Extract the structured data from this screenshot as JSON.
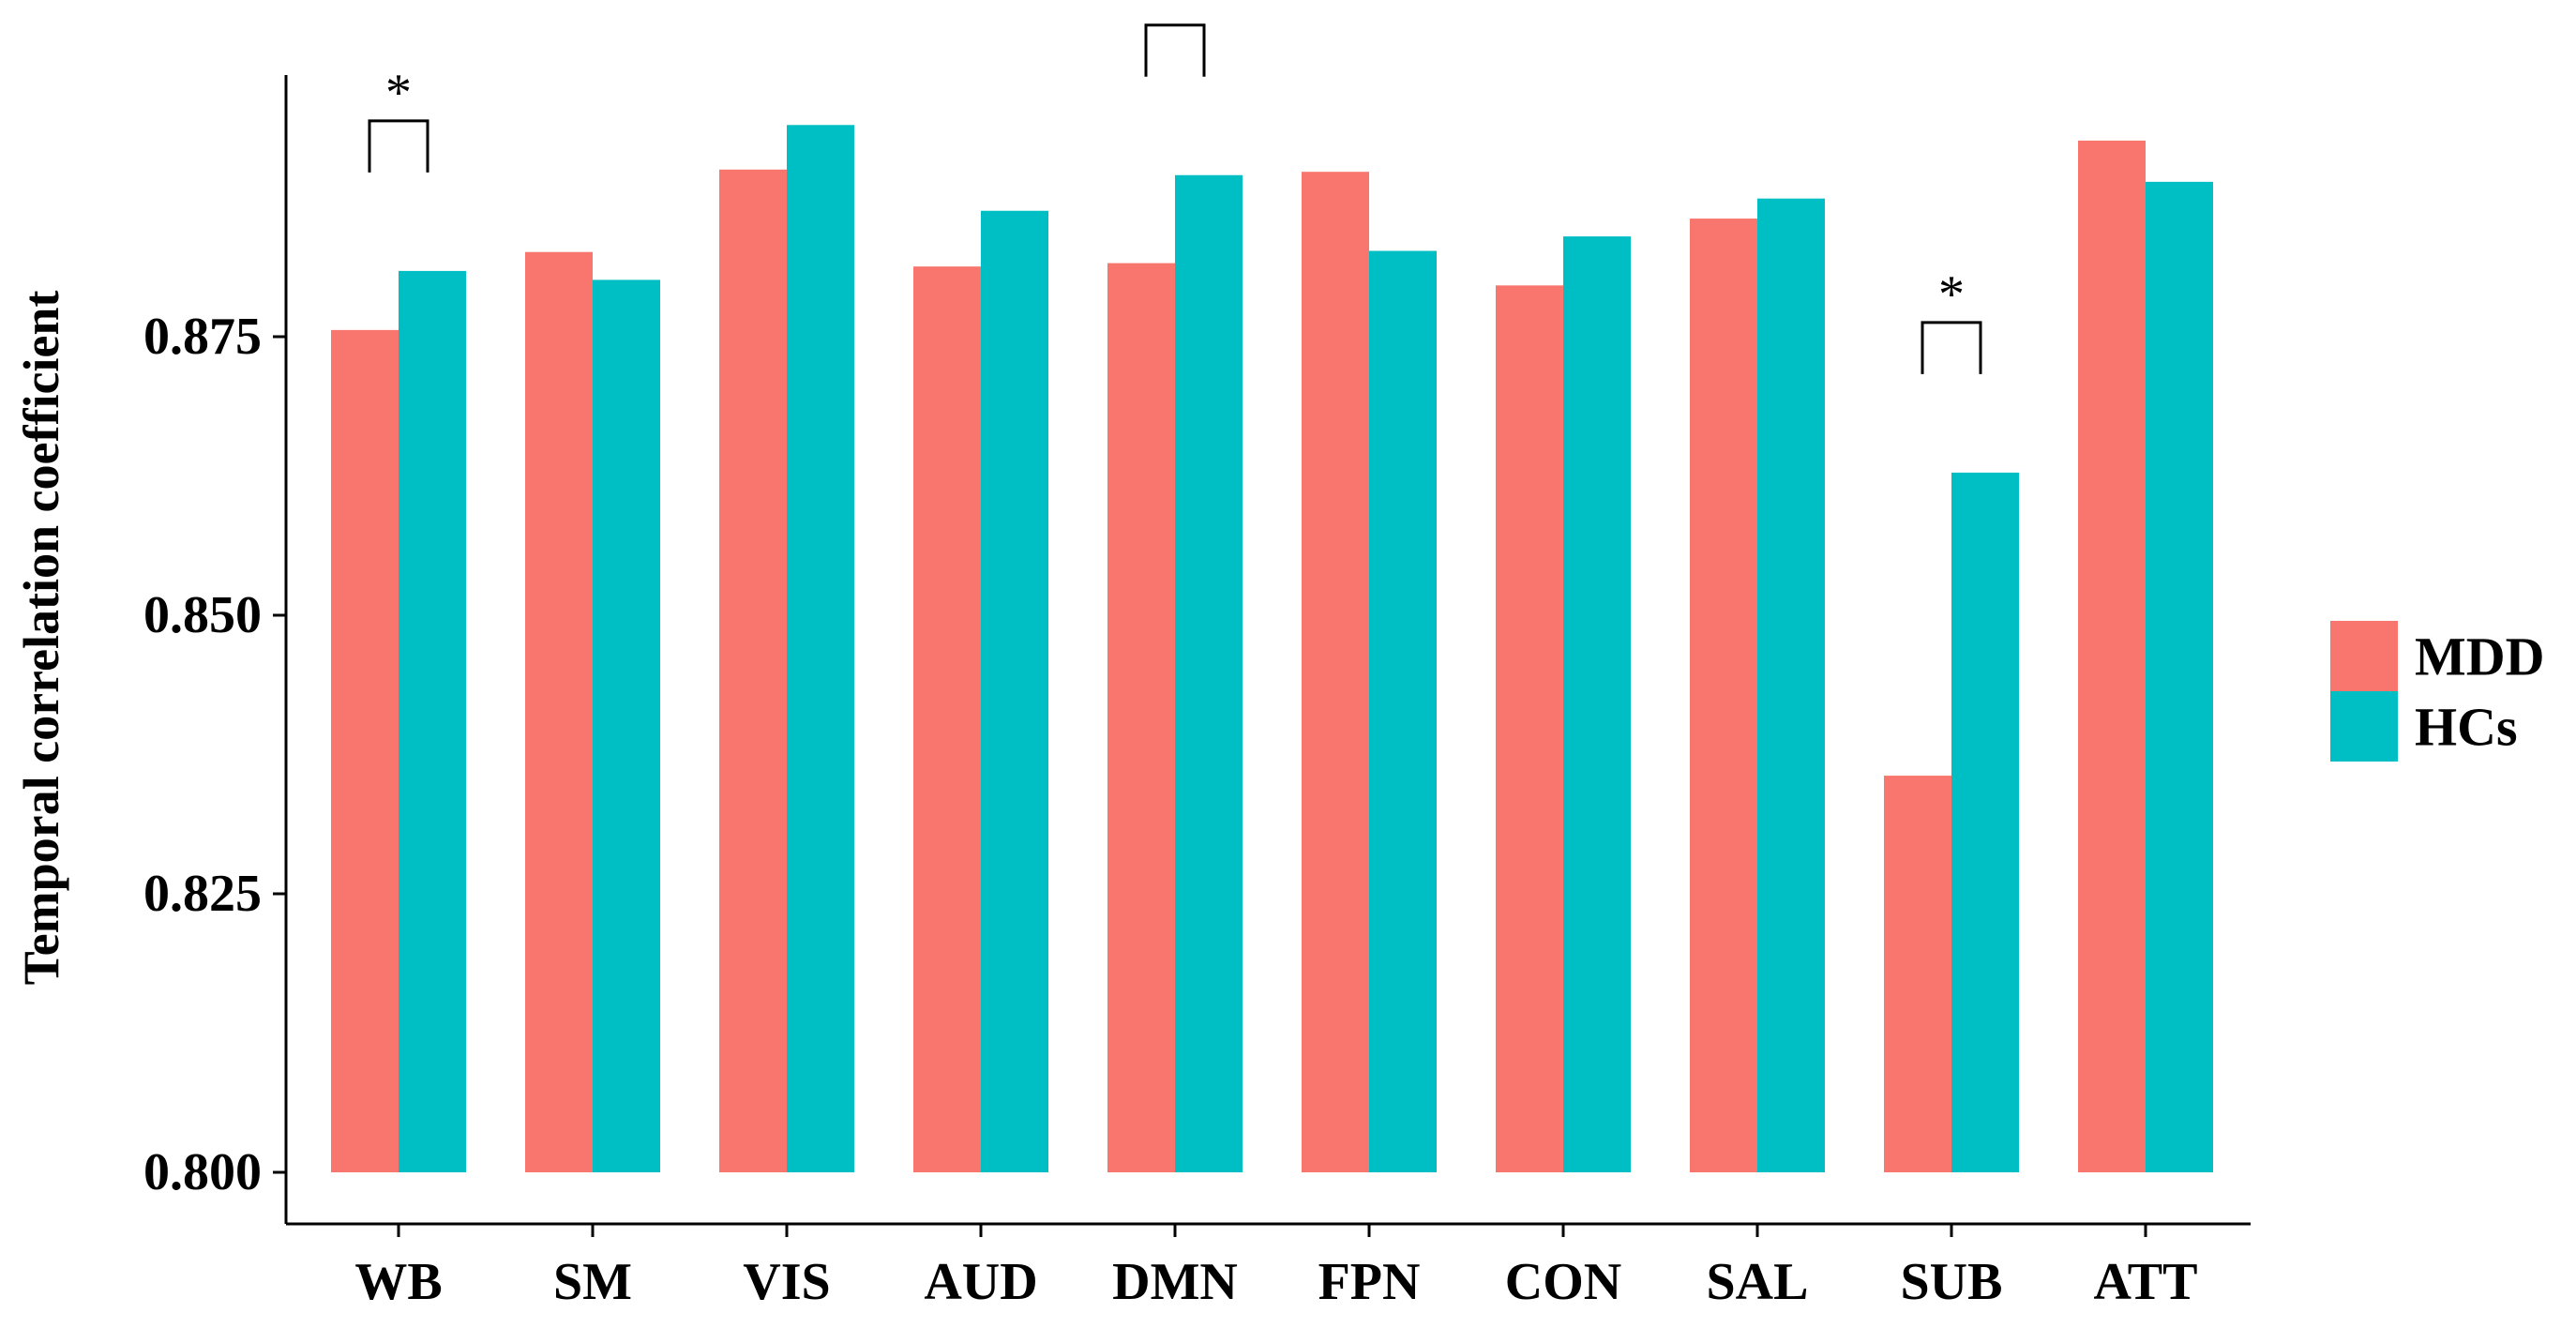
{
  "chart_data": {
    "type": "bar",
    "title": "",
    "xlabel": "",
    "ylabel": "Temporal correlation coefficient",
    "ylim": [
      0.8,
      0.9
    ],
    "yticks": [
      0.8,
      0.825,
      0.85,
      0.875
    ],
    "ytick_labels": [
      "0.800",
      "0.825",
      "0.850",
      "0.875"
    ],
    "categories": [
      "WB",
      "SM",
      "VIS",
      "AUD",
      "DMN",
      "FPN",
      "CON",
      "SAL",
      "SUB",
      "ATT"
    ],
    "series": [
      {
        "name": "MDD",
        "color": "#F8766D",
        "values": [
          0.8756,
          0.8826,
          0.89,
          0.8813,
          0.8816,
          0.8898,
          0.8796,
          0.8856,
          0.8356,
          0.8926
        ]
      },
      {
        "name": "HCs",
        "color": "#00BFC4",
        "values": [
          0.8809,
          0.8801,
          0.894,
          0.8863,
          0.8895,
          0.8827,
          0.884,
          0.8874,
          0.8628,
          0.8889
        ]
      }
    ],
    "annotations": [
      {
        "category": "WB",
        "label": "*"
      },
      {
        "category": "DMN",
        "label": "*"
      },
      {
        "category": "SUB",
        "label": "*"
      }
    ],
    "legend": {
      "position": "right",
      "entries": [
        "MDD",
        "HCs"
      ]
    },
    "grid": false
  }
}
